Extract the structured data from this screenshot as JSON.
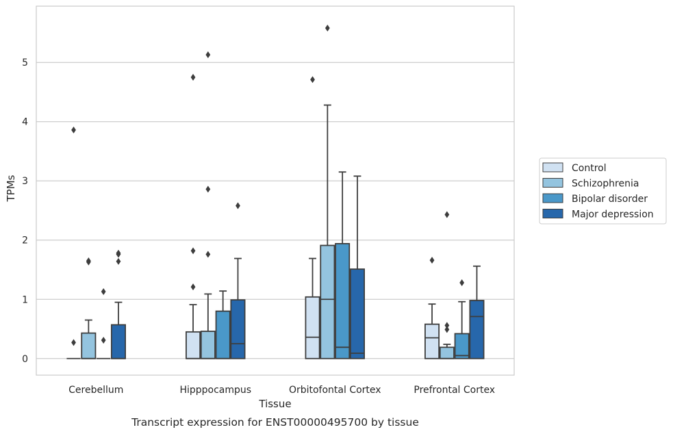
{
  "chart_data": {
    "type": "box",
    "title": "",
    "caption": "Transcript expression for ENST00000495700 by tissue",
    "xlabel": "Tissue",
    "ylabel": "TPMs",
    "ylim": [
      -0.28,
      5.95
    ],
    "yticks": [
      0,
      1,
      2,
      3,
      4,
      5
    ],
    "categories": [
      "Cerebellum",
      "Hipppocampus",
      "Orbitofontal Cortex",
      "Prefrontal Cortex"
    ],
    "grid": "horizontal",
    "legend_position": "right",
    "colors": {
      "Control": "#d0e1f2",
      "Schizophrenia": "#94c4df",
      "Bipolar disorder": "#4a98c9",
      "Major depression": "#2767ab"
    },
    "series": [
      {
        "name": "Control",
        "boxes": [
          {
            "q1": 0,
            "median": 0,
            "q3": 0,
            "whisker_low": 0,
            "whisker_high": 0,
            "outliers": [
              0.27,
              3.86
            ]
          },
          {
            "q1": 0,
            "median": 0,
            "q3": 0.45,
            "whisker_low": 0,
            "whisker_high": 0.91,
            "outliers": [
              1.21,
              1.82,
              4.75
            ]
          },
          {
            "q1": 0,
            "median": 0.36,
            "q3": 1.04,
            "whisker_low": 0,
            "whisker_high": 1.69,
            "outliers": [
              4.71
            ]
          },
          {
            "q1": 0,
            "median": 0.35,
            "q3": 0.58,
            "whisker_low": 0,
            "whisker_high": 0.92,
            "outliers": [
              1.66
            ]
          }
        ]
      },
      {
        "name": "Schizophrenia",
        "boxes": [
          {
            "q1": 0,
            "median": 0,
            "q3": 0.43,
            "whisker_low": 0,
            "whisker_high": 0.65,
            "outliers": [
              1.63,
              1.65
            ]
          },
          {
            "q1": 0,
            "median": 0,
            "q3": 0.46,
            "whisker_low": 0,
            "whisker_high": 1.09,
            "outliers": [
              1.76,
              2.86,
              5.13
            ]
          },
          {
            "q1": 0,
            "median": 1.0,
            "q3": 1.91,
            "whisker_low": 0,
            "whisker_high": 4.28,
            "outliers": [
              5.58
            ]
          },
          {
            "q1": 0,
            "median": 0,
            "q3": 0.19,
            "whisker_low": 0,
            "whisker_high": 0.24,
            "outliers": [
              0.49,
              0.56,
              2.43
            ]
          }
        ]
      },
      {
        "name": "Bipolar disorder",
        "boxes": [
          {
            "q1": 0,
            "median": 0,
            "q3": 0,
            "whisker_low": 0,
            "whisker_high": 0,
            "outliers": [
              0.31,
              1.13
            ]
          },
          {
            "q1": 0,
            "median": 0,
            "q3": 0.8,
            "whisker_low": 0,
            "whisker_high": 1.14,
            "outliers": []
          },
          {
            "q1": 0,
            "median": 0.19,
            "q3": 1.94,
            "whisker_low": 0,
            "whisker_high": 3.15,
            "outliers": []
          },
          {
            "q1": 0,
            "median": 0.05,
            "q3": 0.42,
            "whisker_low": 0,
            "whisker_high": 0.96,
            "outliers": [
              1.28
            ]
          }
        ]
      },
      {
        "name": "Major depression",
        "boxes": [
          {
            "q1": 0,
            "median": 0,
            "q3": 0.57,
            "whisker_low": 0,
            "whisker_high": 0.95,
            "outliers": [
              1.64,
              1.76,
              1.78
            ]
          },
          {
            "q1": 0,
            "median": 0.25,
            "q3": 0.99,
            "whisker_low": 0,
            "whisker_high": 1.69,
            "outliers": [
              2.58
            ]
          },
          {
            "q1": 0,
            "median": 0.09,
            "q3": 1.51,
            "whisker_low": 0,
            "whisker_high": 3.08,
            "outliers": []
          },
          {
            "q1": 0,
            "median": 0.71,
            "q3": 0.98,
            "whisker_low": 0,
            "whisker_high": 1.56,
            "outliers": []
          }
        ]
      }
    ]
  }
}
